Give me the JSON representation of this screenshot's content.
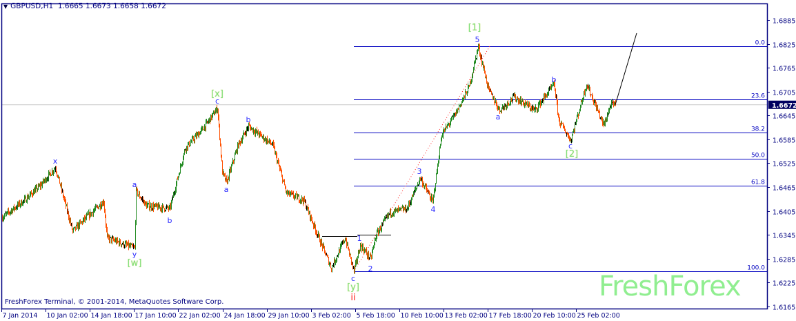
{
  "header": {
    "symbol": "GBPUSD,H1",
    "open": "1.6665",
    "high": "1.6673",
    "low": "1.6658",
    "close": "1.6672"
  },
  "footer": {
    "copyright": "FreshForex Terminal, © 2001-2014, MetaQuotes Software Corp."
  },
  "watermark": "FreshForex",
  "colors": {
    "up": "#228b22",
    "down": "#ff5000",
    "doji": "#000000",
    "axis": "#000080",
    "fib": "#0000c0",
    "wave_label": "#2a2aff",
    "degree_label": "#7ee07e",
    "red_label": "#ff2020",
    "watermark": "#90ee90"
  },
  "chart_data": {
    "type": "candlestick",
    "symbol": "GBPUSD",
    "timeframe": "H1",
    "ylim": [
      1.6135,
      1.693
    ],
    "y_ticks": [
      "1.6885",
      "1.6825",
      "1.6765",
      "1.6705",
      "1.6645",
      "1.6585",
      "1.6525",
      "1.6465",
      "1.6405",
      "1.6345",
      "1.6285",
      "1.6225",
      "1.6165"
    ],
    "x_ticks": [
      "7 Jan 2014",
      "10 Jan 02:00",
      "14 Jan 18:00",
      "17 Jan 10:00",
      "22 Jan 02:00",
      "24 Jan 18:00",
      "29 Jan 10:00",
      "3 Feb 02:00",
      "5 Feb 18:00",
      "10 Feb 10:00",
      "13 Feb 02:00",
      "17 Feb 18:00",
      "20 Feb 10:00",
      "25 Feb 02:00"
    ],
    "current_price": "1.6672",
    "price_path": [
      [
        "2014-01-07 11:00",
        1.6389
      ],
      [
        "2014-01-08 19:00",
        1.6432
      ],
      [
        "2014-01-09 17:00",
        1.6467
      ],
      [
        "2014-01-10 16:00",
        1.6515
      ],
      [
        "2014-01-13 17:00",
        1.6354
      ],
      [
        "2014-01-14 13:00",
        1.6389
      ],
      [
        "2014-01-15 14:00",
        1.6429
      ],
      [
        "2014-01-15 19:00",
        1.6337
      ],
      [
        "2014-01-17 11:00",
        1.6311
      ],
      [
        "2014-01-17 13:00",
        1.6455
      ],
      [
        "2014-01-20 04:00",
        1.6418
      ],
      [
        "2014-01-21 14:00",
        1.6411
      ],
      [
        "2014-01-22 12:00",
        1.6562
      ],
      [
        "2014-01-23 15:00",
        1.6614
      ],
      [
        "2014-01-24 11:00",
        1.6663
      ],
      [
        "2014-01-24 18:00",
        1.6502
      ],
      [
        "2014-01-27 00:00",
        1.6476
      ],
      [
        "2014-01-27 17:00",
        1.6571
      ],
      [
        "2014-01-28 08:00",
        1.6618
      ],
      [
        "2014-01-29 19:00",
        1.6571
      ],
      [
        "2014-01-30 15:00",
        1.645
      ],
      [
        "2014-01-31 16:00",
        1.6432
      ],
      [
        "2014-02-03 14:00",
        1.6337
      ],
      [
        "2014-02-04 08:00",
        1.6262
      ],
      [
        "2014-02-05 04:00",
        1.6337
      ],
      [
        "2014-02-05 17:00",
        1.6253
      ],
      [
        "2014-02-06 02:00",
        1.6319
      ],
      [
        "2014-02-06 17:00",
        1.6285
      ],
      [
        "2014-02-07 01:00",
        1.6345
      ],
      [
        "2014-02-07 21:00",
        1.6401
      ],
      [
        "2014-02-10 22:00",
        1.6411
      ],
      [
        "2014-02-11 17:00",
        1.6488
      ],
      [
        "2014-02-12 11:00",
        1.6427
      ],
      [
        "2014-02-13 00:00",
        1.6597
      ],
      [
        "2014-02-13 20:00",
        1.6649
      ],
      [
        "2014-02-14 16:00",
        1.6718
      ],
      [
        "2014-02-17 05:00",
        1.6819
      ],
      [
        "2014-02-17 20:00",
        1.671
      ],
      [
        "2014-02-18 12:00",
        1.6658
      ],
      [
        "2014-02-19 09:00",
        1.6692
      ],
      [
        "2014-02-20 15:00",
        1.6658
      ],
      [
        "2014-02-21 19:00",
        1.6724
      ],
      [
        "2014-02-24 02:00",
        1.6632
      ],
      [
        "2014-02-24 19:00",
        1.6583
      ],
      [
        "2014-02-25 18:00",
        1.6724
      ],
      [
        "2014-02-26 06:00",
        1.6675
      ],
      [
        "2014-02-26 19:00",
        1.662
      ],
      [
        "2014-02-27 05:00",
        1.6672
      ],
      [
        "2014-02-27 12:00",
        1.6672
      ]
    ],
    "fibonacci": {
      "from": [
        "2014-02-05 17:00",
        1.6253
      ],
      "to": [
        "2014-02-17 05:00",
        1.6819
      ],
      "levels": [
        {
          "label": "0.0",
          "price": 1.6819
        },
        {
          "label": "23.6",
          "price": 1.6685
        },
        {
          "label": "38.2",
          "price": 1.6603
        },
        {
          "label": "50.0",
          "price": 1.6536
        },
        {
          "label": "61.8",
          "price": 1.6469
        },
        {
          "label": "100.0",
          "price": 1.6253
        }
      ]
    },
    "trendline": {
      "from": [
        "2014-02-05 17:00",
        1.6253
      ],
      "to": [
        "2014-02-17 22:00",
        1.6819
      ],
      "style": "dotted",
      "color": "#ff2020"
    },
    "projection": {
      "from": [
        "2014-02-27 12:00",
        1.6672
      ],
      "to": [
        "2014-02-28 19:00",
        1.6852
      ],
      "color": "#000000"
    },
    "horizontal_lines": [
      {
        "from": "2014-02-03 19:00",
        "to": "2014-02-05 22:00",
        "price": 1.6342
      },
      {
        "from": "2014-02-05 22:00",
        "to": "2014-02-07 23:00",
        "price": 1.6345
      }
    ],
    "wave_labels": [
      {
        "text": "x",
        "style": "b",
        "time": "2014-01-10 16:00",
        "price": 1.653
      },
      {
        "text": "y",
        "style": "b",
        "time": "2014-01-17 11:00",
        "price": 1.6295
      },
      {
        "text": "[w]",
        "style": "g",
        "time": "2014-01-17 11:00",
        "price": 1.6273
      },
      {
        "text": "a",
        "style": "b",
        "time": "2014-01-17 11:00",
        "price": 1.647
      },
      {
        "text": "b",
        "style": "b",
        "time": "2014-01-21 14:00",
        "price": 1.638
      },
      {
        "text": "[x]",
        "style": "g",
        "time": "2014-01-24 11:00",
        "price": 1.6698
      },
      {
        "text": "c",
        "style": "b",
        "time": "2014-01-24 11:00",
        "price": 1.668
      },
      {
        "text": "a",
        "style": "b",
        "time": "2014-01-27 00:00",
        "price": 1.6458
      },
      {
        "text": "b",
        "style": "b",
        "time": "2014-01-28 08:00",
        "price": 1.6633
      },
      {
        "text": "c",
        "style": "b",
        "time": "2014-02-05 16:00",
        "price": 1.6234
      },
      {
        "text": "[y]",
        "style": "g",
        "time": "2014-02-05 16:00",
        "price": 1.6212
      },
      {
        "text": "ii",
        "style": "r",
        "time": "2014-02-05 16:00",
        "price": 1.6186
      },
      {
        "text": "1",
        "style": "b",
        "time": "2014-02-06 01:00",
        "price": 1.6335
      },
      {
        "text": "2",
        "style": "b",
        "time": "2014-02-06 17:00",
        "price": 1.6259
      },
      {
        "text": "3",
        "style": "b",
        "time": "2014-02-11 16:00",
        "price": 1.6503
      },
      {
        "text": "4",
        "style": "b",
        "time": "2014-02-12 12:00",
        "price": 1.6408
      },
      {
        "text": "5",
        "style": "b",
        "time": "2014-02-17 04:00",
        "price": 1.6834
      },
      {
        "text": "[1]",
        "style": "g",
        "time": "2014-02-17 00:00",
        "price": 1.6865
      },
      {
        "text": "a",
        "style": "b",
        "time": "2014-02-18 10:00",
        "price": 1.664
      },
      {
        "text": "b",
        "style": "b",
        "time": "2014-02-21 19:00",
        "price": 1.6734
      },
      {
        "text": "c",
        "style": "b",
        "time": "2014-02-24 19:00",
        "price": 1.6567
      },
      {
        "text": "[2]",
        "style": "g",
        "time": "2014-02-24 21:00",
        "price": 1.6546
      }
    ]
  }
}
